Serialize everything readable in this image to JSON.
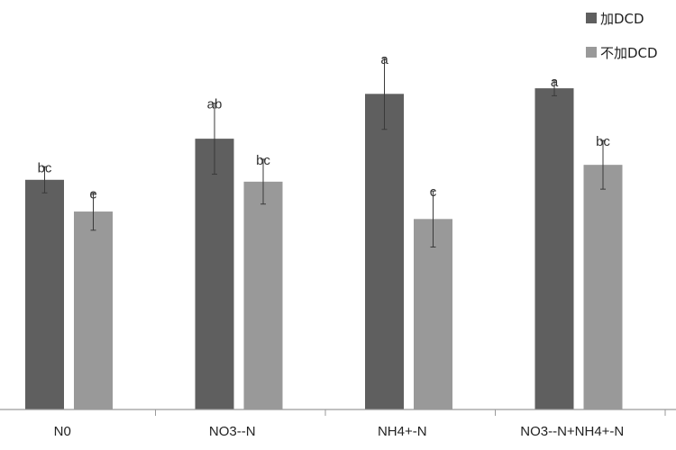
{
  "chart_data": {
    "type": "bar",
    "title": "",
    "xlabel": "",
    "ylabel": "",
    "ylim": [
      0,
      100
    ],
    "categories": [
      "N0",
      "NO3--N",
      "NH4+-N",
      "NO3--N+NH4+-N"
    ],
    "series": [
      {
        "name": "加DCD",
        "color": "#5f5f5f",
        "values": [
          61.5,
          72.5,
          84.5,
          86
        ],
        "errors": [
          3.5,
          9.5,
          9.5,
          2
        ],
        "labels": [
          "bc",
          "ab",
          "a",
          "a"
        ]
      },
      {
        "name": "不加DCD",
        "color": "#999999",
        "values": [
          53,
          61,
          51,
          65.5
        ],
        "errors": [
          5,
          6,
          7.5,
          6.5
        ],
        "labels": [
          "e",
          "bc",
          "c",
          "bc"
        ]
      }
    ],
    "legend": {
      "position": "top-right"
    }
  }
}
